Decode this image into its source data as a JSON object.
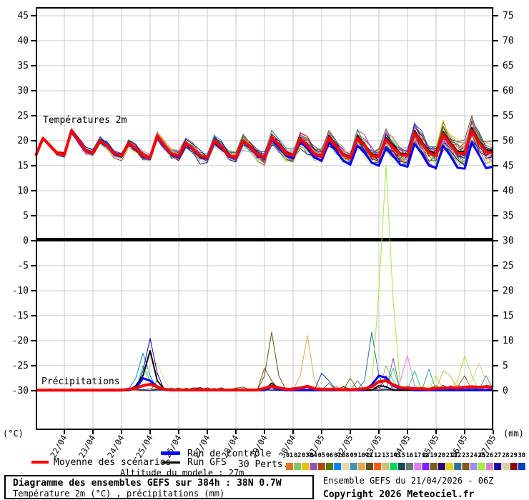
{
  "header": {
    "panel_label_top": "Températures 2m",
    "panel_label_bottom": "Précipitations"
  },
  "footer": {
    "title_line1": "Diagramme des ensembles GEFS sur 384h : 38N 0.7W",
    "title_line2": "Température 2m (°C) , précipitations (mm)",
    "run_info": "Ensemble GEFS du 21/04/2026 - 06Z",
    "copyright": "Copyright 2026 Meteociel.fr",
    "altitude_label": "Altitude du modele : 27m"
  },
  "legend": {
    "mean_label": "Moyenne des scénarios",
    "control_label": "Run de contrôle",
    "gfs_label": "Run GFS",
    "perts_label": "30 Perts.",
    "mean_color": "#ff0000",
    "control_color": "#0000ff",
    "gfs_color": "#000000",
    "pert_number_color": "#000060",
    "pert_numbers": [
      "01",
      "02",
      "03",
      "04",
      "05",
      "06",
      "07",
      "08",
      "09",
      "10",
      "11",
      "12",
      "13",
      "14",
      "15",
      "16",
      "17",
      "18",
      "19",
      "20",
      "21",
      "22",
      "23",
      "24",
      "25",
      "26",
      "27",
      "28",
      "29",
      "30"
    ],
    "pert_colors": [
      "#E07820",
      "#84C464",
      "#E4C400",
      "#9054B4",
      "#AC4800",
      "#547800",
      "#0080FF",
      "#E8D8A8",
      "#4890AC",
      "#E0A850",
      "#645014",
      "#FC5814",
      "#CCC074",
      "#00D85C",
      "#1C4854",
      "#647474",
      "#E47CF4",
      "#8020FC",
      "#7C5C1C",
      "#2C006C",
      "#E4D400",
      "#2C70A0",
      "#885820",
      "#9890EC",
      "#A0EC40",
      "#DC7CD4",
      "#1C009C",
      "#DCD0A4",
      "#8C0000",
      "#0040C4"
    ]
  },
  "chart_data": {
    "type": "line",
    "title": "Diagramme des ensembles GEFS sur 384h : 38N 0.7W",
    "x_dates": [
      "22/04",
      "23/04",
      "24/04",
      "25/04",
      "26/04",
      "27/04",
      "28/04",
      "29/04",
      "30/04",
      "01/05",
      "02/05",
      "03/05",
      "04/05",
      "05/05",
      "06/05",
      "07/05"
    ],
    "hours_step": 6,
    "hours_total": 384,
    "left_axis": {
      "unit": "(°C)",
      "min": -30,
      "max": 45,
      "tick_step": 5
    },
    "right_axis": {
      "unit": "(mm)",
      "min": 0,
      "max": 75,
      "tick_step": 5
    },
    "grid_color": "#c8c8c8",
    "series": {
      "mean_temp": [
        17.0,
        20.5,
        19.0,
        17.5,
        17.2,
        22.0,
        20.0,
        18.0,
        17.5,
        20.0,
        19.0,
        17.4,
        17.0,
        19.5,
        18.5,
        17.0,
        16.6,
        21.0,
        19.0,
        17.4,
        17.0,
        19.5,
        18.4,
        17.0,
        16.6,
        20.0,
        18.8,
        17.0,
        16.6,
        20.0,
        18.8,
        17.2,
        16.6,
        20.6,
        19.2,
        17.4,
        17.0,
        20.3,
        19.0,
        17.3,
        16.8,
        20.6,
        19.0,
        17.2,
        16.5,
        20.5,
        19.0,
        17.0,
        16.8,
        20.2,
        18.6,
        17.2,
        17.0,
        21.5,
        19.4,
        17.6,
        17.0,
        21.3,
        19.2,
        17.5,
        17.4,
        22.0,
        19.6,
        17.8,
        17.5
      ],
      "control_temp": [
        17.0,
        20.4,
        19.0,
        17.4,
        17.1,
        21.8,
        19.8,
        17.9,
        17.4,
        19.8,
        18.8,
        17.2,
        16.8,
        19.3,
        18.3,
        16.8,
        16.4,
        20.8,
        18.8,
        17.2,
        16.8,
        19.2,
        18.2,
        16.8,
        16.4,
        19.8,
        18.6,
        16.8,
        16.4,
        19.8,
        18.6,
        17.0,
        16.4,
        20.2,
        18.8,
        17.0,
        16.5,
        19.8,
        18.4,
        16.6,
        16.0,
        19.6,
        18.0,
        16.0,
        15.2,
        19.0,
        17.6,
        15.6,
        15.0,
        18.6,
        17.0,
        15.2,
        14.8,
        19.4,
        17.4,
        15.0,
        14.6,
        19.0,
        17.0,
        14.6,
        14.4,
        19.6,
        17.2,
        14.5,
        14.8
      ],
      "gfs_temp": [
        17.0,
        20.6,
        19.1,
        17.6,
        17.3,
        22.2,
        20.1,
        18.1,
        17.6,
        20.2,
        19.2,
        17.5,
        17.1,
        19.7,
        18.6,
        17.1,
        16.7,
        21.2,
        19.2,
        17.5,
        17.1,
        19.7,
        18.5,
        17.1,
        16.7,
        20.2,
        19.0,
        17.1,
        16.8,
        20.2,
        19.0,
        17.3,
        16.8,
        20.8,
        19.4,
        17.6,
        17.2,
        20.6,
        19.2,
        17.5,
        17.0,
        21.0,
        19.3,
        17.4,
        16.8,
        21.0,
        19.3,
        17.3,
        17.0,
        20.6,
        19.0,
        17.5,
        17.4,
        22.0,
        19.8,
        18.0,
        17.4,
        21.8,
        19.6,
        17.9,
        17.8,
        22.6,
        20.0,
        18.2,
        17.9
      ],
      "ensemble_spread": [
        0.15,
        0.3,
        0.4,
        0.5,
        0.5,
        0.6,
        0.7,
        0.7,
        0.7,
        0.8,
        0.8,
        0.8,
        0.8,
        0.9,
        0.9,
        0.9,
        0.9,
        1.0,
        1.0,
        1.0,
        1.0,
        1.0,
        1.0,
        1.0,
        1.0,
        1.1,
        1.1,
        1.1,
        1.1,
        1.2,
        1.2,
        1.2,
        1.2,
        1.4,
        1.4,
        1.4,
        1.4,
        1.6,
        1.6,
        1.5,
        1.5,
        1.7,
        1.7,
        1.6,
        1.6,
        1.9,
        1.9,
        1.8,
        1.8,
        2.2,
        2.1,
        2.0,
        2.0,
        2.4,
        2.3,
        2.2,
        2.2,
        2.6,
        2.5,
        2.4,
        2.4,
        2.8,
        2.7,
        2.6,
        2.6
      ],
      "mean_precip": [
        0.1,
        0.1,
        0.1,
        0.1,
        0.1,
        0.1,
        0.1,
        0.1,
        0.1,
        0.1,
        0.1,
        0.1,
        0.1,
        0.3,
        0.5,
        1.0,
        1.3,
        0.8,
        0.3,
        0.15,
        0.15,
        0.15,
        0.15,
        0.15,
        0.15,
        0.15,
        0.15,
        0.15,
        0.15,
        0.15,
        0.15,
        0.15,
        0.5,
        0.9,
        0.6,
        0.3,
        0.3,
        0.5,
        0.9,
        0.4,
        0.3,
        0.3,
        0.3,
        0.2,
        0.2,
        0.3,
        0.4,
        0.8,
        1.8,
        2.0,
        1.2,
        0.6,
        0.5,
        0.4,
        0.4,
        0.3,
        0.5,
        0.5,
        0.6,
        0.5,
        0.7,
        0.8,
        0.7,
        0.8,
        0.7
      ],
      "control_precip": [
        0.1,
        0.1,
        0.1,
        0.1,
        0.1,
        0.1,
        0.1,
        0.1,
        0.1,
        0.1,
        0.1,
        0.1,
        0.1,
        0.1,
        0.5,
        2.5,
        2.0,
        0.8,
        0.2,
        0.1,
        0.1,
        0.1,
        0.1,
        0.1,
        0.1,
        0.1,
        0.1,
        0.1,
        0.1,
        0.1,
        0.1,
        0.1,
        0.1,
        0.8,
        0.3,
        0.1,
        0.1,
        0.1,
        0.1,
        0.1,
        0.1,
        0.1,
        0.1,
        0.1,
        0.1,
        0.1,
        0.1,
        1.2,
        3.0,
        2.6,
        1.0,
        0.4,
        0.5,
        0.1,
        0.1,
        0.1,
        0.1,
        0.1,
        0.1,
        0.1,
        0.1,
        0.1,
        0.1,
        0.1,
        0.1
      ],
      "gfs_precip": [
        0.1,
        0.1,
        0.1,
        0.1,
        0.1,
        0.1,
        0.1,
        0.1,
        0.1,
        0.1,
        0.1,
        0.1,
        0.1,
        0.1,
        1.0,
        3.0,
        8.0,
        2.0,
        0.3,
        0.1,
        0.1,
        0.1,
        0.1,
        0.1,
        0.1,
        0.1,
        0.1,
        0.1,
        0.1,
        0.1,
        0.1,
        0.1,
        0.1,
        1.5,
        0.4,
        0.1,
        0.1,
        0.1,
        0.1,
        0.1,
        0.1,
        0.1,
        0.1,
        0.1,
        0.1,
        0.1,
        0.1,
        0.1,
        1.0,
        0.8,
        0.1,
        0.1,
        0.1,
        0.1,
        0.1,
        0.1,
        0.1,
        0.1,
        0.1,
        0.1,
        0.1,
        0.1,
        0.1,
        0.1,
        0.1
      ],
      "member_precip_spikes": [
        {
          "member": 7,
          "points": {
            "14": 2.5,
            "15": 7.5,
            "16": 3
          }
        },
        {
          "member": 27,
          "points": {
            "15": 4,
            "16": 10.5,
            "17": 3.5
          }
        },
        {
          "member": 14,
          "points": {
            "15": 5,
            "16": 2,
            "50": 4.5,
            "53": 4
          }
        },
        {
          "member": 8,
          "points": {
            "16": 5.5,
            "17": 5.5,
            "18": 2
          }
        },
        {
          "member": 11,
          "points": {
            "17": 2,
            "32": 3,
            "33": 11.7,
            "34": 3
          }
        },
        {
          "member": 23,
          "points": {
            "32": 4.5,
            "33": 2,
            "60": 3
          }
        },
        {
          "member": 10,
          "points": {
            "37": 3,
            "38": 11,
            "39": 2,
            "57": 4,
            "58": 3
          }
        },
        {
          "member": 22,
          "points": {
            "46": 2,
            "47": 11.7,
            "48": 3
          }
        },
        {
          "member": 25,
          "points": {
            "47": 1,
            "48": 20,
            "49": 45,
            "50": 18,
            "51": 1,
            "56": 3,
            "59": 2,
            "60": 7,
            "61": 3
          }
        },
        {
          "member": 17,
          "points": {
            "51": 2,
            "52": 7,
            "53": 1
          }
        },
        {
          "member": 9,
          "points": {
            "55": 4.3,
            "63": 3
          }
        },
        {
          "member": 28,
          "points": {
            "61": 2,
            "62": 5.5,
            "63": 2
          }
        },
        {
          "member": 2,
          "points": {
            "49": 5,
            "50": 2
          }
        },
        {
          "member": 4,
          "points": {
            "50": 6.5
          }
        },
        {
          "member": 18,
          "points": {
            "49": 3
          }
        },
        {
          "member": 16,
          "points": {
            "41": 1.5,
            "45": 2
          }
        },
        {
          "member": 30,
          "points": {
            "40": 3.5,
            "41": 2
          }
        },
        {
          "member": 6,
          "points": {
            "44": 2.5
          }
        }
      ],
      "member_temp_events": [
        {
          "member": 20,
          "from": 20,
          "to": 24,
          "offset": -1.8
        },
        {
          "member": 28,
          "from": 46,
          "to": 51,
          "offset": -2.2
        },
        {
          "member": 15,
          "from": 56,
          "to": 64,
          "offset": 1.6
        },
        {
          "member": 24,
          "from": 28,
          "to": 32,
          "offset": -1.5
        }
      ],
      "seed": 7
    }
  }
}
